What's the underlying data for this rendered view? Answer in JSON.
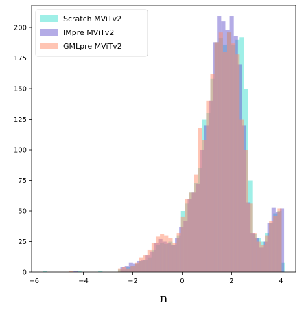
{
  "chart_data": {
    "type": "histogram",
    "xlabel": "ת",
    "xlim": [
      -6.1,
      4.6
    ],
    "ylim": [
      0,
      218
    ],
    "xticks": [
      -6,
      -4,
      -2,
      0,
      2,
      4
    ],
    "yticks": [
      0,
      25,
      50,
      75,
      100,
      125,
      150,
      175,
      200
    ],
    "grid": false,
    "legend_position": "top-left",
    "series": [
      {
        "name": "Scratch MViTv2",
        "color": "#40E0D0",
        "bins": [
          [
            -5.65,
            -5.48,
            1
          ],
          [
            -4.25,
            -4.08,
            1
          ],
          [
            -3.4,
            -3.23,
            1
          ],
          [
            -2.6,
            -2.43,
            2
          ],
          [
            -2.43,
            -2.26,
            2
          ],
          [
            -2.26,
            -2.09,
            4
          ],
          [
            -2.09,
            -1.92,
            5
          ],
          [
            -1.92,
            -1.75,
            7
          ],
          [
            -1.75,
            -1.58,
            9
          ],
          [
            -1.58,
            -1.41,
            10
          ],
          [
            -1.41,
            -1.24,
            12
          ],
          [
            -1.24,
            -1.07,
            18
          ],
          [
            -1.07,
            -0.9,
            22
          ],
          [
            -0.9,
            -0.73,
            24
          ],
          [
            -0.73,
            -0.56,
            23
          ],
          [
            -0.56,
            -0.39,
            25
          ],
          [
            -0.39,
            -0.22,
            22
          ],
          [
            -0.22,
            -0.05,
            30
          ],
          [
            -0.05,
            0.12,
            50
          ],
          [
            0.12,
            0.29,
            56
          ],
          [
            0.29,
            0.46,
            65
          ],
          [
            0.46,
            0.63,
            73
          ],
          [
            0.63,
            0.8,
            85
          ],
          [
            0.8,
            0.97,
            125
          ],
          [
            0.97,
            1.14,
            130
          ],
          [
            1.14,
            1.31,
            158
          ],
          [
            1.31,
            1.48,
            188
          ],
          [
            1.48,
            1.65,
            191
          ],
          [
            1.65,
            1.82,
            186
          ],
          [
            1.82,
            1.99,
            196
          ],
          [
            1.99,
            2.16,
            186
          ],
          [
            2.16,
            2.33,
            190
          ],
          [
            2.33,
            2.5,
            192
          ],
          [
            2.5,
            2.67,
            150
          ],
          [
            2.67,
            2.84,
            75
          ],
          [
            2.84,
            3.01,
            31
          ],
          [
            3.01,
            3.18,
            28
          ],
          [
            3.18,
            3.35,
            25
          ],
          [
            3.35,
            3.52,
            32
          ],
          [
            3.52,
            3.69,
            40
          ],
          [
            3.69,
            3.86,
            48
          ],
          [
            3.86,
            4.03,
            50
          ],
          [
            4.03,
            4.15,
            8
          ]
        ]
      },
      {
        "name": "IMpre MViTv2",
        "color": "#6A5ACD",
        "bins": [
          [
            -4.4,
            -4.23,
            1
          ],
          [
            -2.5,
            -2.33,
            4
          ],
          [
            -2.33,
            -2.16,
            5
          ],
          [
            -2.16,
            -1.99,
            8
          ],
          [
            -1.99,
            -1.82,
            7
          ],
          [
            -1.82,
            -1.65,
            9
          ],
          [
            -1.65,
            -1.48,
            10
          ],
          [
            -1.48,
            -1.31,
            14
          ],
          [
            -1.31,
            -1.14,
            17
          ],
          [
            -1.14,
            -0.97,
            24
          ],
          [
            -0.97,
            -0.8,
            27
          ],
          [
            -0.8,
            -0.63,
            25
          ],
          [
            -0.63,
            -0.46,
            24
          ],
          [
            -0.46,
            -0.29,
            22
          ],
          [
            -0.29,
            -0.12,
            28
          ],
          [
            -0.12,
            0.05,
            37
          ],
          [
            0.05,
            0.22,
            42
          ],
          [
            0.22,
            0.39,
            60
          ],
          [
            0.39,
            0.56,
            65
          ],
          [
            0.56,
            0.73,
            72
          ],
          [
            0.73,
            0.9,
            100
          ],
          [
            0.9,
            1.07,
            120
          ],
          [
            1.07,
            1.24,
            140
          ],
          [
            1.24,
            1.41,
            188
          ],
          [
            1.41,
            1.58,
            209
          ],
          [
            1.58,
            1.75,
            205
          ],
          [
            1.75,
            1.92,
            198
          ],
          [
            1.92,
            2.09,
            209
          ],
          [
            2.09,
            2.26,
            193
          ],
          [
            2.26,
            2.43,
            170
          ],
          [
            2.43,
            2.6,
            120
          ],
          [
            2.6,
            2.77,
            57
          ],
          [
            2.77,
            2.94,
            32
          ],
          [
            2.94,
            3.11,
            28
          ],
          [
            3.11,
            3.28,
            20
          ],
          [
            3.28,
            3.45,
            25
          ],
          [
            3.45,
            3.62,
            40
          ],
          [
            3.62,
            3.79,
            53
          ],
          [
            3.79,
            3.96,
            49
          ],
          [
            3.96,
            4.13,
            52
          ]
        ]
      },
      {
        "name": "GMLpre MViTv2",
        "color": "#FF8C69",
        "bins": [
          [
            -4.6,
            -4.43,
            1
          ],
          [
            -2.6,
            -2.43,
            3
          ],
          [
            -2.43,
            -2.26,
            4
          ],
          [
            -2.26,
            -2.09,
            3
          ],
          [
            -2.09,
            -1.92,
            5
          ],
          [
            -1.92,
            -1.75,
            8
          ],
          [
            -1.75,
            -1.58,
            12
          ],
          [
            -1.58,
            -1.41,
            14
          ],
          [
            -1.41,
            -1.24,
            18
          ],
          [
            -1.24,
            -1.07,
            24
          ],
          [
            -1.07,
            -0.9,
            29
          ],
          [
            -0.9,
            -0.73,
            31
          ],
          [
            -0.73,
            -0.56,
            30
          ],
          [
            -0.56,
            -0.39,
            28
          ],
          [
            -0.39,
            -0.22,
            24
          ],
          [
            -0.22,
            -0.05,
            32
          ],
          [
            -0.05,
            0.12,
            45
          ],
          [
            0.12,
            0.29,
            60
          ],
          [
            0.29,
            0.46,
            65
          ],
          [
            0.46,
            0.63,
            80
          ],
          [
            0.63,
            0.8,
            118
          ],
          [
            0.8,
            0.97,
            108
          ],
          [
            0.97,
            1.14,
            140
          ],
          [
            1.14,
            1.31,
            162
          ],
          [
            1.31,
            1.48,
            188
          ],
          [
            1.48,
            1.65,
            196
          ],
          [
            1.65,
            1.82,
            180
          ],
          [
            1.82,
            1.99,
            196
          ],
          [
            1.99,
            2.16,
            187
          ],
          [
            2.16,
            2.33,
            178
          ],
          [
            2.33,
            2.5,
            125
          ],
          [
            2.5,
            2.67,
            100
          ],
          [
            2.67,
            2.84,
            56
          ],
          [
            2.84,
            3.01,
            32
          ],
          [
            3.01,
            3.18,
            25
          ],
          [
            3.18,
            3.35,
            22
          ],
          [
            3.35,
            3.52,
            30
          ],
          [
            3.52,
            3.69,
            42
          ],
          [
            3.69,
            3.86,
            46
          ],
          [
            3.86,
            4.03,
            52
          ]
        ]
      }
    ]
  }
}
